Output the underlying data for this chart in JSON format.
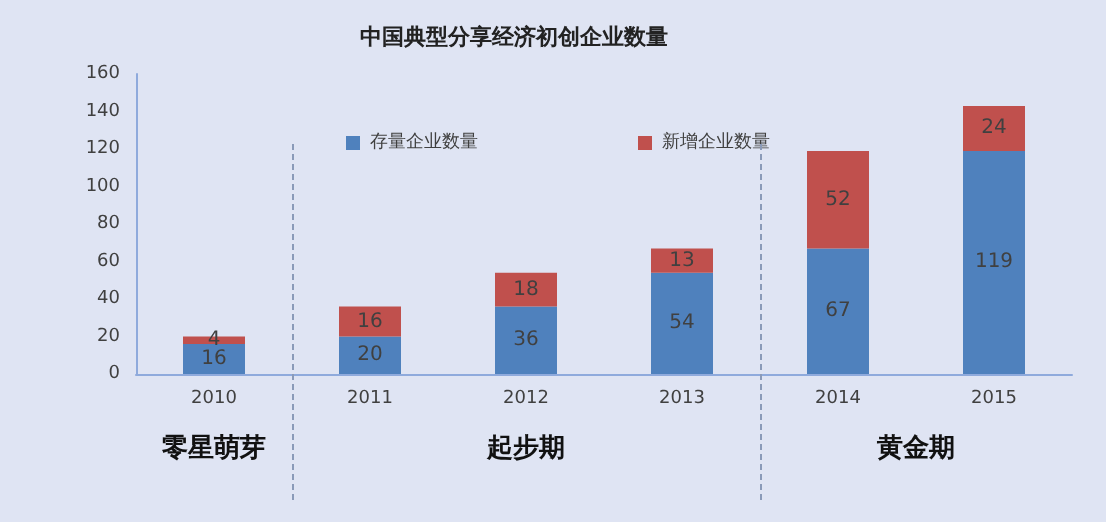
{
  "chart_data": {
    "type": "bar",
    "title": "中国典型分享经济初创企业数量",
    "categories": [
      "2010",
      "2011",
      "2012",
      "2013",
      "2014",
      "2015"
    ],
    "stacked": true,
    "series": [
      {
        "name": "存量企业数量",
        "color": "#4f81bd",
        "values": [
          16,
          20,
          36,
          54,
          67,
          119
        ]
      },
      {
        "name": "新增企业数量",
        "color": "#c0504d",
        "values": [
          4,
          16,
          18,
          13,
          52,
          24
        ]
      }
    ],
    "ylim": [
      0,
      160
    ],
    "yticks": [
      0,
      20,
      40,
      60,
      80,
      100,
      120,
      140,
      160
    ],
    "grid": false,
    "legend": "top",
    "data_labels": true,
    "annotations": [
      "零星萌芽",
      "起步期",
      "黄金期"
    ]
  }
}
